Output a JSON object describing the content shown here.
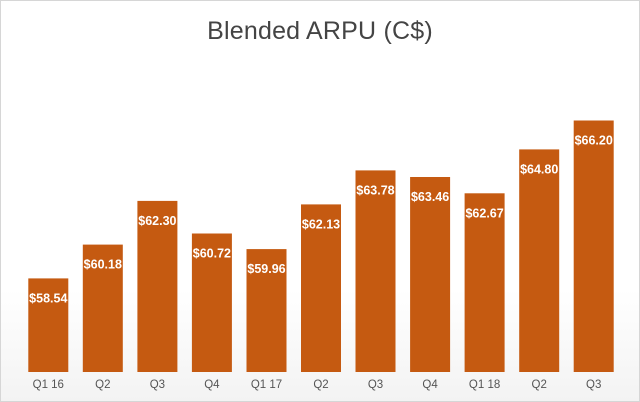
{
  "chart_data": {
    "type": "bar",
    "title": "Blended ARPU (C$)",
    "xlabel": "",
    "ylabel": "",
    "categories": [
      "Q1 16",
      "Q2",
      "Q3",
      "Q4",
      "Q1 17",
      "Q2",
      "Q3",
      "Q4",
      "Q1 18",
      "Q2",
      "Q3"
    ],
    "values": [
      58.54,
      60.18,
      62.3,
      60.72,
      59.96,
      62.13,
      63.78,
      63.46,
      62.67,
      64.8,
      66.2
    ],
    "data_labels": [
      "$58.54",
      "$60.18",
      "$62.30",
      "$60.72",
      "$59.96",
      "$62.13",
      "$63.78",
      "$63.46",
      "$62.67",
      "$64.80",
      "$66.20"
    ],
    "ylim": [
      54.0,
      67.0
    ],
    "grid": false,
    "legend": "none",
    "bar_color": "#c55a11"
  }
}
